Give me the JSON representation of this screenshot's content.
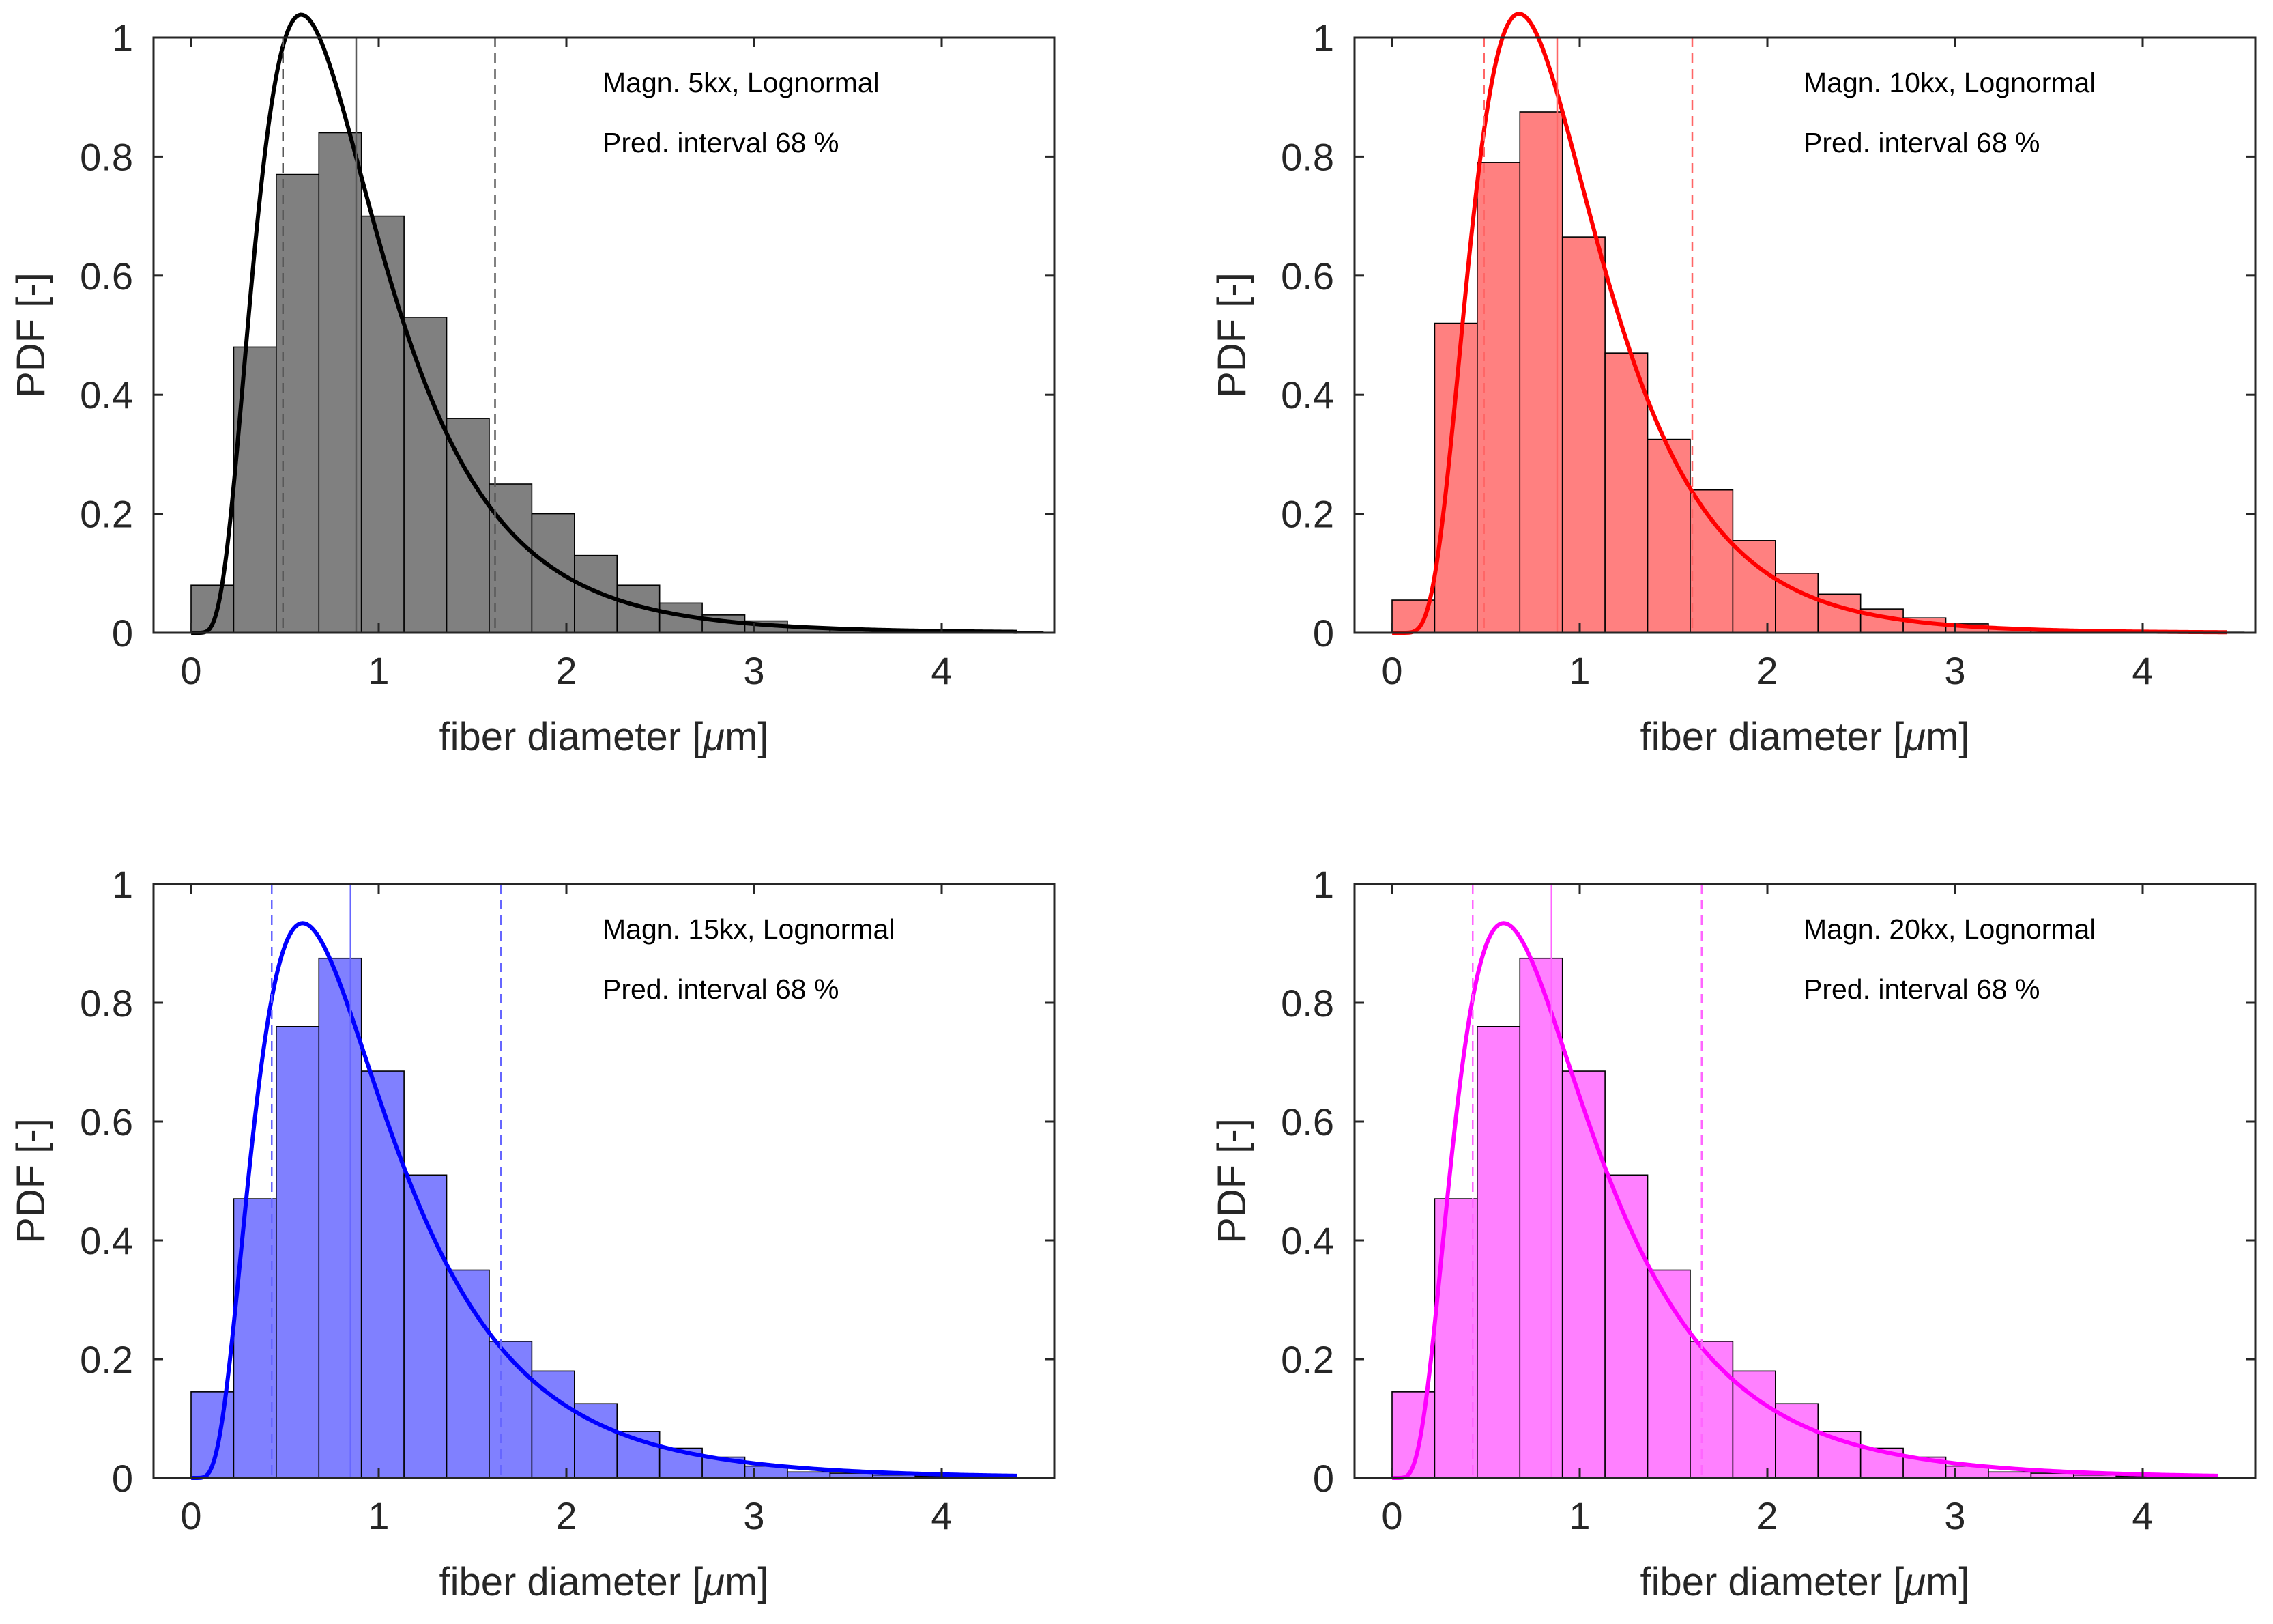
{
  "chart_data": [
    {
      "type": "histogram",
      "annotation_lines": [
        "Magn. 5kx, Lognormal",
        "Pred. interval 68 %"
      ],
      "xlabel_main": "fiber diameter [",
      "xlabel_mu": "μ",
      "xlabel_tail": "m]",
      "ylabel": "PDF [-]",
      "xlim": [
        -0.2,
        4.6
      ],
      "ylim": [
        0,
        1
      ],
      "xticks": [
        "0",
        "1",
        "2",
        "3",
        "4"
      ],
      "yticks": [
        "0",
        "0.2",
        "0.4",
        "0.6",
        "0.8",
        "1"
      ],
      "bin_width": 0.227,
      "bin_edges_start": 0.0,
      "bars": [
        0.08,
        0.48,
        0.77,
        0.84,
        0.7,
        0.53,
        0.36,
        0.25,
        0.2,
        0.13,
        0.08,
        0.05,
        0.03,
        0.02,
        0.01,
        0.005,
        0.005,
        0.003,
        0.003,
        0.002
      ],
      "fit": {
        "distribution": "lognormal",
        "mu": -0.22,
        "sigma": 0.56,
        "x_max": 4.4
      },
      "median": 0.88,
      "interval": [
        0.49,
        1.62
      ],
      "bar_color": "#808080",
      "line_color": "#000000",
      "median_color": "#595959",
      "interval_color": "#595959"
    },
    {
      "type": "histogram",
      "annotation_lines": [
        "Magn. 10kx, Lognormal",
        "Pred. interval 68 %"
      ],
      "xlabel_main": "fiber diameter [",
      "xlabel_mu": "μ",
      "xlabel_tail": "m]",
      "ylabel": "PDF [-]",
      "xlim": [
        -0.2,
        4.6
      ],
      "ylim": [
        0,
        1
      ],
      "xticks": [
        "0",
        "1",
        "2",
        "3",
        "4"
      ],
      "yticks": [
        "0",
        "0.2",
        "0.4",
        "0.6",
        "0.8",
        "1"
      ],
      "bin_width": 0.227,
      "bin_edges_start": 0.0,
      "bars": [
        0.055,
        0.52,
        0.79,
        0.875,
        0.665,
        0.47,
        0.325,
        0.24,
        0.155,
        0.1,
        0.065,
        0.04,
        0.025,
        0.015,
        0.008,
        0.005,
        0.004,
        0.003,
        0.002,
        0.001
      ],
      "fit": {
        "distribution": "lognormal",
        "mu": -0.14,
        "sigma": 0.5,
        "x_max": 4.45
      },
      "median": 0.88,
      "interval": [
        0.49,
        1.6
      ],
      "bar_color": "#ff8080",
      "line_color": "#ff0000",
      "median_color": "#ff6666",
      "interval_color": "#ff6666"
    },
    {
      "type": "histogram",
      "annotation_lines": [
        "Magn. 15kx, Lognormal",
        "Pred. interval 68 %"
      ],
      "xlabel_main": "fiber diameter [",
      "xlabel_mu": "μ",
      "xlabel_tail": "m]",
      "ylabel": "PDF [-]",
      "xlim": [
        -0.2,
        4.6
      ],
      "ylim": [
        0,
        1
      ],
      "xticks": [
        "0",
        "1",
        "2",
        "3",
        "4"
      ],
      "yticks": [
        "0",
        "0.2",
        "0.4",
        "0.6",
        "0.8",
        "1"
      ],
      "bin_width": 0.227,
      "bin_edges_start": 0.0,
      "bars": [
        0.145,
        0.47,
        0.76,
        0.875,
        0.685,
        0.51,
        0.35,
        0.23,
        0.18,
        0.125,
        0.078,
        0.05,
        0.035,
        0.02,
        0.01,
        0.008,
        0.005,
        0.003,
        0.002,
        0.001
      ],
      "fit": {
        "distribution": "lognormal",
        "mu": -0.16,
        "sigma": 0.6,
        "x_max": 4.4
      },
      "median": 0.85,
      "interval": [
        0.43,
        1.65
      ],
      "bar_color": "#8080ff",
      "line_color": "#0000ff",
      "median_color": "#6666ff",
      "interval_color": "#6666ff"
    },
    {
      "type": "histogram",
      "annotation_lines": [
        "Magn. 20kx, Lognormal",
        "Pred. interval 68 %"
      ],
      "xlabel_main": "fiber diameter [",
      "xlabel_mu": "μ",
      "xlabel_tail": "m]",
      "ylabel": "PDF [-]",
      "xlim": [
        -0.2,
        4.6
      ],
      "ylim": [
        0,
        1
      ],
      "xticks": [
        "0",
        "1",
        "2",
        "3",
        "4"
      ],
      "yticks": [
        "0",
        "0.2",
        "0.4",
        "0.6",
        "0.8",
        "1"
      ],
      "bin_width": 0.227,
      "bin_edges_start": 0.0,
      "bars": [
        0.145,
        0.47,
        0.76,
        0.875,
        0.685,
        0.51,
        0.35,
        0.23,
        0.18,
        0.125,
        0.078,
        0.05,
        0.035,
        0.02,
        0.01,
        0.008,
        0.005,
        0.003,
        0.002,
        0.001
      ],
      "fit": {
        "distribution": "lognormal",
        "mu": -0.16,
        "sigma": 0.6,
        "x_max": 4.4
      },
      "median": 0.85,
      "interval": [
        0.43,
        1.65
      ],
      "bar_color": "#ff80ff",
      "line_color": "#ff00ff",
      "median_color": "#ff66ff",
      "interval_color": "#ff66ff"
    }
  ]
}
